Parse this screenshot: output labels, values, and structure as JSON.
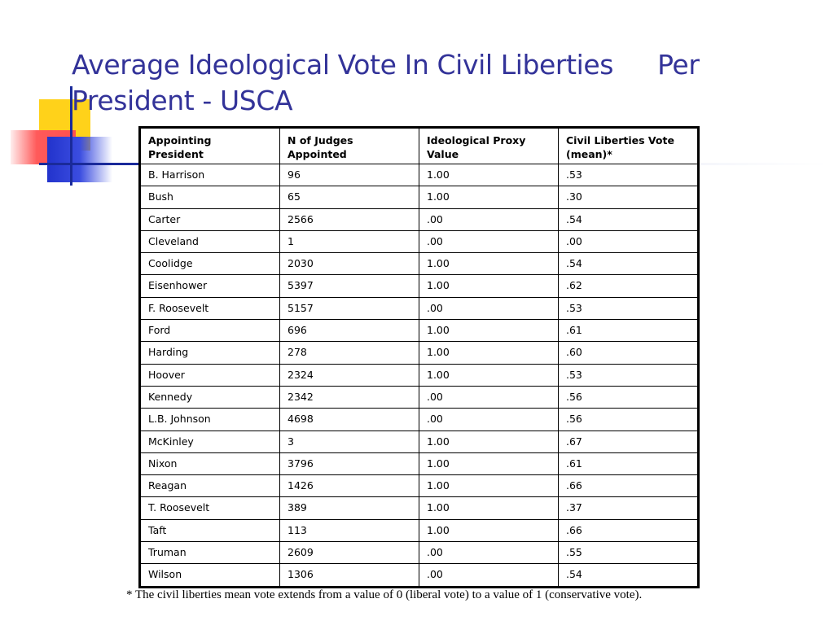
{
  "slide": {
    "title_line1": "Average Ideological Vote In Civil Liberties",
    "title_line1b": "Per",
    "title_line2": "President - USCA"
  },
  "table": {
    "headers": [
      [
        "Appointing",
        "President"
      ],
      [
        "N of Judges",
        "Appointed"
      ],
      [
        "Ideological Proxy",
        "Value"
      ],
      [
        "Civil Liberties Vote",
        "(mean)*"
      ]
    ],
    "rows": [
      [
        "B. Harrison",
        "96",
        "1.00",
        ".53"
      ],
      [
        "Bush",
        "65",
        "1.00",
        ".30"
      ],
      [
        "Carter",
        "2566",
        ".00",
        ".54"
      ],
      [
        "Cleveland",
        "1",
        ".00",
        ".00"
      ],
      [
        "Coolidge",
        "2030",
        "1.00",
        ".54"
      ],
      [
        "Eisenhower",
        "5397",
        "1.00",
        ".62"
      ],
      [
        "F. Roosevelt",
        "5157",
        ".00",
        ".53"
      ],
      [
        "Ford",
        "696",
        "1.00",
        ".61"
      ],
      [
        "Harding",
        "278",
        "1.00",
        ".60"
      ],
      [
        "Hoover",
        "2324",
        "1.00",
        ".53"
      ],
      [
        "Kennedy",
        "2342",
        ".00",
        ".56"
      ],
      [
        "L.B. Johnson",
        "4698",
        ".00",
        ".56"
      ],
      [
        "McKinley",
        "3",
        "1.00",
        ".67"
      ],
      [
        "Nixon",
        "3796",
        "1.00",
        ".61"
      ],
      [
        "Reagan",
        "1426",
        "1.00",
        ".66"
      ],
      [
        "T. Roosevelt",
        "389",
        "1.00",
        ".37"
      ],
      [
        "Taft",
        "113",
        "1.00",
        ".66"
      ],
      [
        "Truman",
        "2609",
        ".00",
        ".55"
      ],
      [
        "Wilson",
        "1306",
        ".00",
        ".54"
      ]
    ]
  },
  "footnote": "* The civil liberties mean vote extends from a value of 0 (liberal vote) to a value of 1 (conservative vote).",
  "colors": {
    "title": "#333399",
    "accent_yellow": "#ffd21a",
    "accent_red": "#ff5050",
    "accent_blue": "#2233cc"
  }
}
